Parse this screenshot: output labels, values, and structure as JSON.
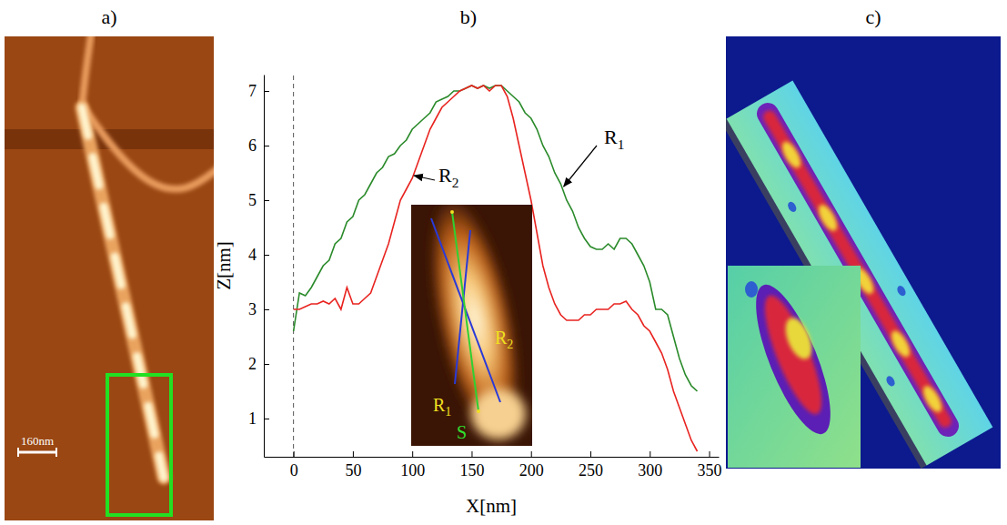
{
  "figure": {
    "panel_labels": [
      "a)",
      "b)",
      "c)"
    ],
    "scale_bar": {
      "label": "160nm"
    }
  },
  "chart_data": {
    "type": "line",
    "x_label": "X[nm]",
    "y_label": "Z[nm]",
    "x": [
      0,
      5,
      10,
      15,
      20,
      25,
      30,
      35,
      40,
      45,
      50,
      55,
      60,
      65,
      70,
      75,
      80,
      85,
      90,
      95,
      100,
      105,
      110,
      115,
      120,
      125,
      130,
      135,
      140,
      145,
      150,
      155,
      160,
      165,
      170,
      175,
      180,
      185,
      190,
      195,
      200,
      205,
      210,
      215,
      220,
      225,
      230,
      235,
      240,
      245,
      250,
      255,
      260,
      265,
      270,
      275,
      280,
      285,
      290,
      295,
      300,
      305,
      310,
      315,
      320,
      325,
      330,
      335,
      340
    ],
    "series": [
      {
        "name": "R1",
        "color": "#2a8a2a",
        "values": [
          2.6,
          3.3,
          3.25,
          3.4,
          3.6,
          3.8,
          3.9,
          4.2,
          4.3,
          4.6,
          4.7,
          5.0,
          5.1,
          5.3,
          5.5,
          5.6,
          5.8,
          5.85,
          6.0,
          6.1,
          6.3,
          6.4,
          6.5,
          6.6,
          6.8,
          6.85,
          6.9,
          7.0,
          7.0,
          7.05,
          7.1,
          7.05,
          7.1,
          7.05,
          7.1,
          7.1,
          7.0,
          6.9,
          6.8,
          6.6,
          6.5,
          6.3,
          6.0,
          5.8,
          5.5,
          5.3,
          5.0,
          4.8,
          4.5,
          4.3,
          4.15,
          4.1,
          4.1,
          4.2,
          4.1,
          4.3,
          4.3,
          4.2,
          4.0,
          3.8,
          3.5,
          3.0,
          3.0,
          2.9,
          2.5,
          2.1,
          1.8,
          1.6,
          1.5
        ]
      },
      {
        "name": "R2",
        "color": "#e8231f",
        "values": [
          3.0,
          3.0,
          3.05,
          3.1,
          3.1,
          3.15,
          3.1,
          3.2,
          3.0,
          3.4,
          3.1,
          3.1,
          3.2,
          3.3,
          3.6,
          3.9,
          4.2,
          4.6,
          5.0,
          5.2,
          5.4,
          5.7,
          6.0,
          6.3,
          6.5,
          6.7,
          6.8,
          6.9,
          7.0,
          7.05,
          7.1,
          7.05,
          7.1,
          7.0,
          7.1,
          7.1,
          6.9,
          6.5,
          6.0,
          5.5,
          5.0,
          4.4,
          3.8,
          3.4,
          3.1,
          2.9,
          2.8,
          2.8,
          2.8,
          2.9,
          2.9,
          3.0,
          3.0,
          3.0,
          3.1,
          3.1,
          3.15,
          3.0,
          2.9,
          2.7,
          2.6,
          2.4,
          2.2,
          1.9,
          1.5,
          1.2,
          0.9,
          0.6,
          0.4
        ]
      }
    ],
    "inset_labels": [
      "R1",
      "R2",
      "S"
    ],
    "xlim": [
      -25,
      358
    ],
    "ylim": [
      0.3,
      7.3
    ],
    "xticks": [
      0,
      50,
      100,
      150,
      200,
      250,
      300,
      350
    ],
    "yticks": [
      1,
      2,
      3,
      4,
      5,
      6,
      7
    ],
    "grid": false
  }
}
